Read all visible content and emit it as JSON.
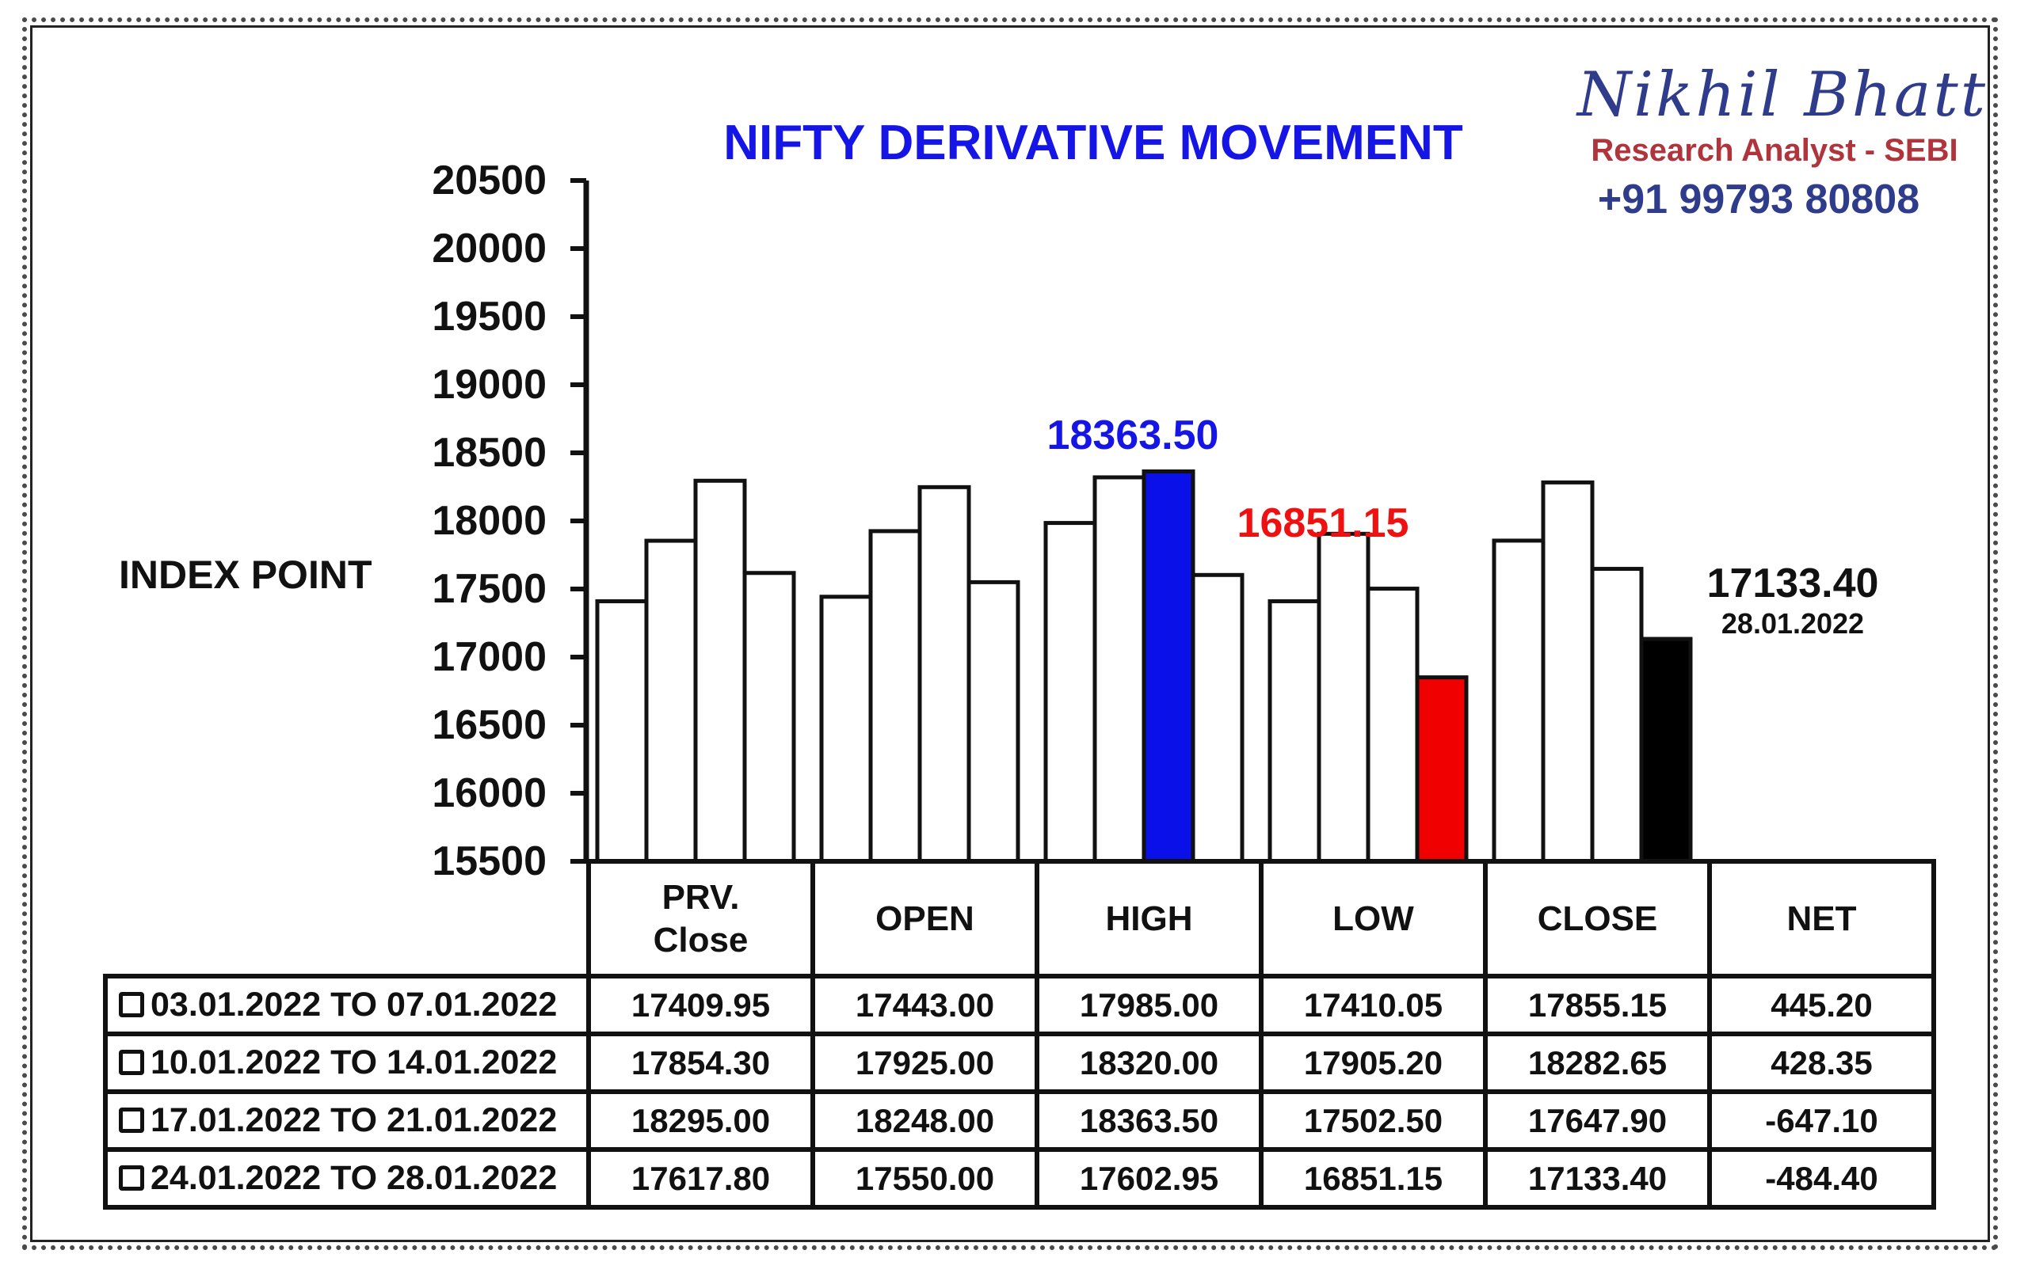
{
  "brand": {
    "name": "Nikhil Bhatt",
    "role": "Research Analyst - SEBI",
    "phone": "+91 99793 80808"
  },
  "chart_data": {
    "type": "bar",
    "title": "NIFTY DERIVATIVE MOVEMENT",
    "ylabel": "INDEX POINT",
    "xlabel": "",
    "ylim": [
      15500,
      20500
    ],
    "yticks": [
      "20500",
      "20000",
      "19500",
      "19000",
      "18500",
      "18000",
      "17500",
      "17000",
      "16500",
      "16000",
      "15500"
    ],
    "categories": [
      "PRV. Close",
      "OPEN",
      "HIGH",
      "LOW",
      "CLOSE"
    ],
    "series": [
      {
        "name": "03.01.2022 TO 07.01.2022",
        "values": [
          17409.95,
          17443.0,
          17985.0,
          17410.05,
          17855.15
        ]
      },
      {
        "name": "10.01.2022 TO 14.01.2022",
        "values": [
          17854.3,
          17925.0,
          18320.0,
          17905.2,
          18282.65
        ]
      },
      {
        "name": "17.01.2022 TO 21.01.2022",
        "values": [
          18295.0,
          18248.0,
          18363.5,
          17502.5,
          17647.9
        ]
      },
      {
        "name": "24.01.2022 TO 28.01.2022",
        "values": [
          17617.8,
          17550.0,
          17602.95,
          16851.15,
          17133.4
        ]
      }
    ],
    "highlights": [
      {
        "category": 2,
        "series": 2,
        "color": "#0a10e8"
      },
      {
        "category": 3,
        "series": 3,
        "color": "#f00000"
      },
      {
        "category": 4,
        "series": 3,
        "color": "#000000"
      }
    ],
    "annotations": {
      "high": {
        "text": "18363.50",
        "color": "#1515e6"
      },
      "low": {
        "text": "16851.15",
        "color": "#ee1111"
      },
      "close": {
        "text": "17133.40",
        "date": "28.01.2022",
        "color": "#111111"
      }
    },
    "grid": false
  },
  "table": {
    "headers": [
      "PRV.\nClose",
      "OPEN",
      "HIGH",
      "LOW",
      "CLOSE",
      "NET"
    ],
    "rows": [
      {
        "period": "03.01.2022 TO 07.01.2022",
        "values": [
          "17409.95",
          "17443.00",
          "17985.00",
          "17410.05",
          "17855.15",
          "445.20"
        ]
      },
      {
        "period": "10.01.2022 TO 14.01.2022",
        "values": [
          "17854.30",
          "17925.00",
          "18320.00",
          "17905.20",
          "18282.65",
          "428.35"
        ]
      },
      {
        "period": "17.01.2022 TO 21.01.2022",
        "values": [
          "18295.00",
          "18248.00",
          "18363.50",
          "17502.50",
          "17647.90",
          "-647.10"
        ]
      },
      {
        "period": "24.01.2022 TO 28.01.2022",
        "values": [
          "17617.80",
          "17550.00",
          "17602.95",
          "16851.15",
          "17133.40",
          "-484.40"
        ]
      }
    ]
  }
}
